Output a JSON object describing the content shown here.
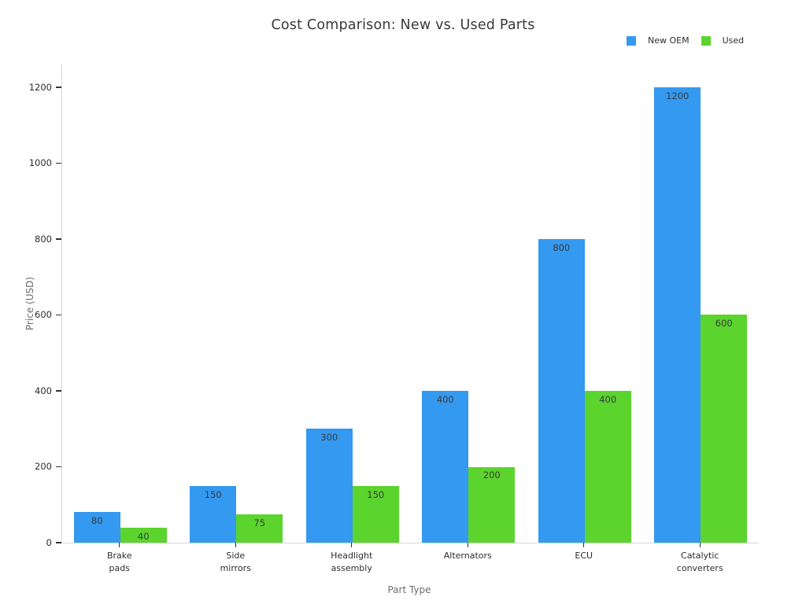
{
  "chart_data": {
    "type": "bar",
    "title": "Cost Comparison: New vs. Used Parts",
    "xlabel": "Part Type",
    "ylabel": "Price (USD)",
    "categories": [
      "Brake\npads",
      "Side\nmirrors",
      "Headlight\nassembly",
      "Alternators",
      "ECU",
      "Catalytic\nconverters"
    ],
    "series": [
      {
        "name": "New OEM",
        "color": "#3499f0",
        "values": [
          80,
          150,
          300,
          400,
          800,
          1200
        ]
      },
      {
        "name": "Used",
        "color": "#5bd42e",
        "values": [
          40,
          75,
          150,
          200,
          400,
          600
        ]
      }
    ],
    "yticks": [
      0,
      200,
      400,
      600,
      800,
      1000,
      1200
    ],
    "ylim": [
      0,
      1260
    ],
    "grid": false,
    "legend_position": "top-right",
    "bar_labels": true
  }
}
